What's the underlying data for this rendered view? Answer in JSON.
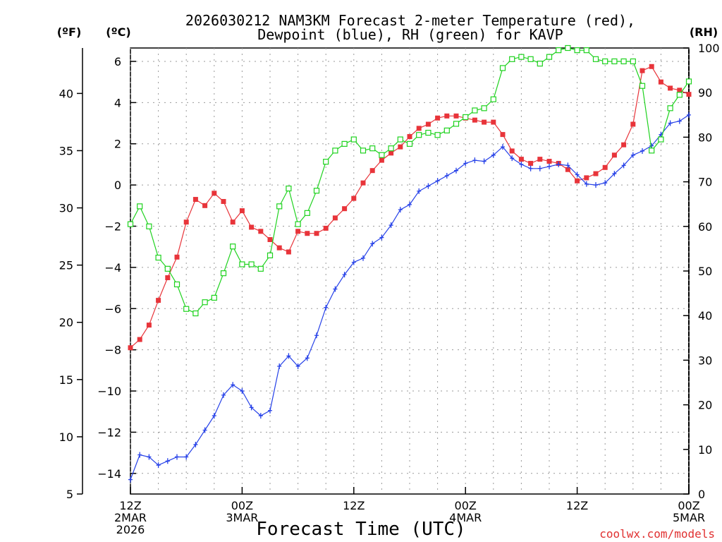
{
  "chart_data": {
    "type": "line",
    "title_lines": [
      "2026030212 NAM3KM Forecast 2-meter Temperature (red),",
      "Dewpoint (blue), RH (green) for KAVP"
    ],
    "xlabel": "Forecast Time (UTC)",
    "credit": "coolwx.com/models",
    "units": {
      "fahrenheit": "(ºF)",
      "celsius": "(ºC)",
      "rh": "(RH)"
    },
    "x_range": [
      0,
      60
    ],
    "x_ticks": [
      {
        "x": 0,
        "lines": [
          "12Z",
          "2MAR",
          "2026"
        ]
      },
      {
        "x": 12,
        "lines": [
          "00Z",
          "3MAR"
        ]
      },
      {
        "x": 24,
        "lines": [
          "12Z"
        ]
      },
      {
        "x": 36,
        "lines": [
          "00Z",
          "4MAR"
        ]
      },
      {
        "x": 48,
        "lines": [
          "12Z"
        ]
      },
      {
        "x": 60,
        "lines": [
          "00Z",
          "5MAR"
        ]
      }
    ],
    "celsius_axis": {
      "range": [
        -15.0,
        6.65
      ],
      "ticks": [
        6,
        4,
        2,
        0,
        -2,
        -4,
        -6,
        -8,
        -10,
        -12,
        -14
      ],
      "tick_labels": [
        "6",
        "4",
        "2",
        "0",
        "−2",
        "−4",
        "−6",
        "−8",
        "−10",
        "−12",
        "−14"
      ]
    },
    "fahrenheit_axis": {
      "ticks": [
        40,
        35,
        30,
        25,
        20,
        15,
        10,
        5
      ],
      "tick_labels": [
        "40",
        "35",
        "30",
        "25",
        "20",
        "15",
        "10",
        "5"
      ]
    },
    "rh_axis": {
      "range": [
        0,
        100
      ],
      "ticks": [
        100,
        90,
        80,
        70,
        60,
        50,
        40,
        30,
        20,
        10,
        0
      ],
      "tick_labels": [
        "100",
        "90",
        "80",
        "70",
        "60",
        "50",
        "40",
        "30",
        "20",
        "10",
        "0"
      ]
    },
    "x": [
      0,
      1,
      2,
      3,
      4,
      5,
      6,
      7,
      8,
      9,
      10,
      11,
      12,
      13,
      14,
      15,
      16,
      17,
      18,
      19,
      20,
      21,
      22,
      23,
      24,
      25,
      26,
      27,
      28,
      29,
      30,
      31,
      32,
      33,
      34,
      35,
      36,
      37,
      38,
      39,
      40,
      41,
      42,
      43,
      44,
      45,
      46,
      47,
      48,
      49,
      50,
      51,
      52,
      53,
      54,
      55,
      56,
      57,
      58,
      59,
      60
    ],
    "series": [
      {
        "name": "2-meter Temperature",
        "axis": "celsius",
        "color": "#e8343a",
        "marker": "filled-square",
        "values": [
          -7.9,
          -7.5,
          -6.8,
          -5.6,
          -4.5,
          -3.5,
          -1.8,
          -0.7,
          -1.0,
          -0.4,
          -0.8,
          -1.8,
          -1.25,
          -2.05,
          -2.25,
          -2.65,
          -3.05,
          -3.25,
          -2.25,
          -2.35,
          -2.35,
          -2.1,
          -1.6,
          -1.15,
          -0.65,
          0.1,
          0.7,
          1.2,
          1.55,
          1.85,
          2.35,
          2.75,
          2.95,
          3.25,
          3.35,
          3.35,
          3.25,
          3.15,
          3.05,
          3.05,
          2.45,
          1.65,
          1.25,
          1.05,
          1.25,
          1.15,
          1.05,
          0.75,
          0.2,
          0.35,
          0.55,
          0.85,
          1.45,
          1.95,
          2.95,
          5.55,
          5.75,
          5.0,
          4.7,
          4.6,
          4.4
        ]
      },
      {
        "name": "Dewpoint",
        "axis": "celsius",
        "color": "#2540e8",
        "marker": "plus",
        "values": [
          -14.3,
          -13.1,
          -13.2,
          -13.6,
          -13.4,
          -13.2,
          -13.2,
          -12.6,
          -11.9,
          -11.2,
          -10.2,
          -9.7,
          -10.0,
          -10.8,
          -11.2,
          -10.95,
          -8.8,
          -8.3,
          -8.8,
          -8.4,
          -7.3,
          -5.95,
          -5.05,
          -4.35,
          -3.75,
          -3.55,
          -2.85,
          -2.55,
          -1.95,
          -1.2,
          -0.95,
          -0.3,
          -0.05,
          0.2,
          0.45,
          0.7,
          1.05,
          1.2,
          1.15,
          1.45,
          1.85,
          1.3,
          1.0,
          0.8,
          0.8,
          0.9,
          1.0,
          0.95,
          0.5,
          0.05,
          0.0,
          0.1,
          0.55,
          0.95,
          1.45,
          1.65,
          1.9,
          2.45,
          3.0,
          3.1,
          3.4
        ]
      },
      {
        "name": "RH",
        "axis": "rh",
        "color": "#1ed21e",
        "marker": "open-square",
        "values": [
          60.5,
          64.5,
          60.0,
          53.0,
          50.5,
          47.0,
          41.5,
          40.5,
          43.0,
          44.0,
          49.5,
          55.5,
          51.5,
          51.5,
          50.5,
          53.5,
          64.5,
          68.5,
          60.5,
          63.0,
          68.0,
          74.5,
          77.0,
          78.5,
          79.5,
          77.0,
          77.5,
          76.0,
          77.5,
          79.5,
          78.5,
          80.5,
          81.0,
          80.5,
          81.5,
          83.0,
          84.5,
          86.0,
          86.5,
          88.5,
          95.5,
          97.5,
          98.0,
          97.5,
          96.5,
          98.0,
          99.5,
          100.0,
          99.5,
          99.5,
          97.5,
          97.0,
          97.0,
          97.0,
          97.0,
          91.5,
          77.0,
          79.5,
          86.5,
          89.5,
          92.5
        ]
      }
    ]
  }
}
